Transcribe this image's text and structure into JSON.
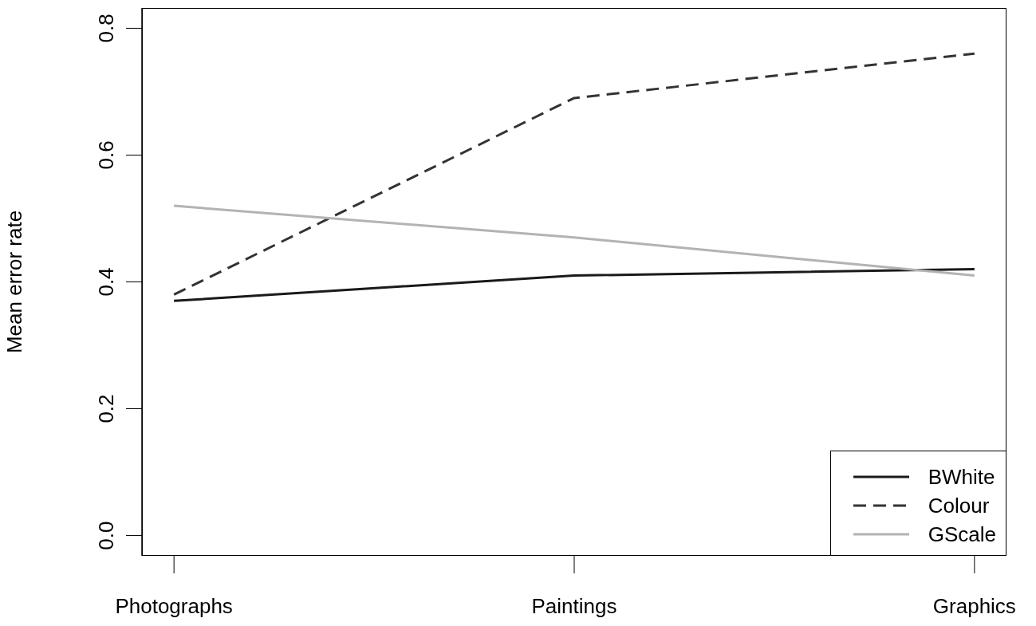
{
  "chart_data": {
    "type": "line",
    "ylabel": "Mean error rate",
    "categories": [
      "Photographs",
      "Paintings",
      "Graphics"
    ],
    "series": [
      {
        "name": "BWhite",
        "color": "#1a1a1a",
        "values": [
          0.37,
          0.41,
          0.42
        ],
        "line_style": "solid"
      },
      {
        "name": "Colour",
        "color": "#333333",
        "values": [
          0.38,
          0.69,
          0.76
        ],
        "line_style": "dashed"
      },
      {
        "name": "GScale",
        "color": "#b3b3b3",
        "values": [
          0.52,
          0.47,
          0.41
        ],
        "line_style": "solid"
      }
    ],
    "ylim": [
      -0.032,
      0.832
    ],
    "yticks": [
      {
        "value": 0,
        "label": "0.0"
      },
      0.2,
      0.4,
      0.6,
      0.8
    ],
    "grid": false,
    "legend": "bottom right",
    "marker": "none"
  }
}
